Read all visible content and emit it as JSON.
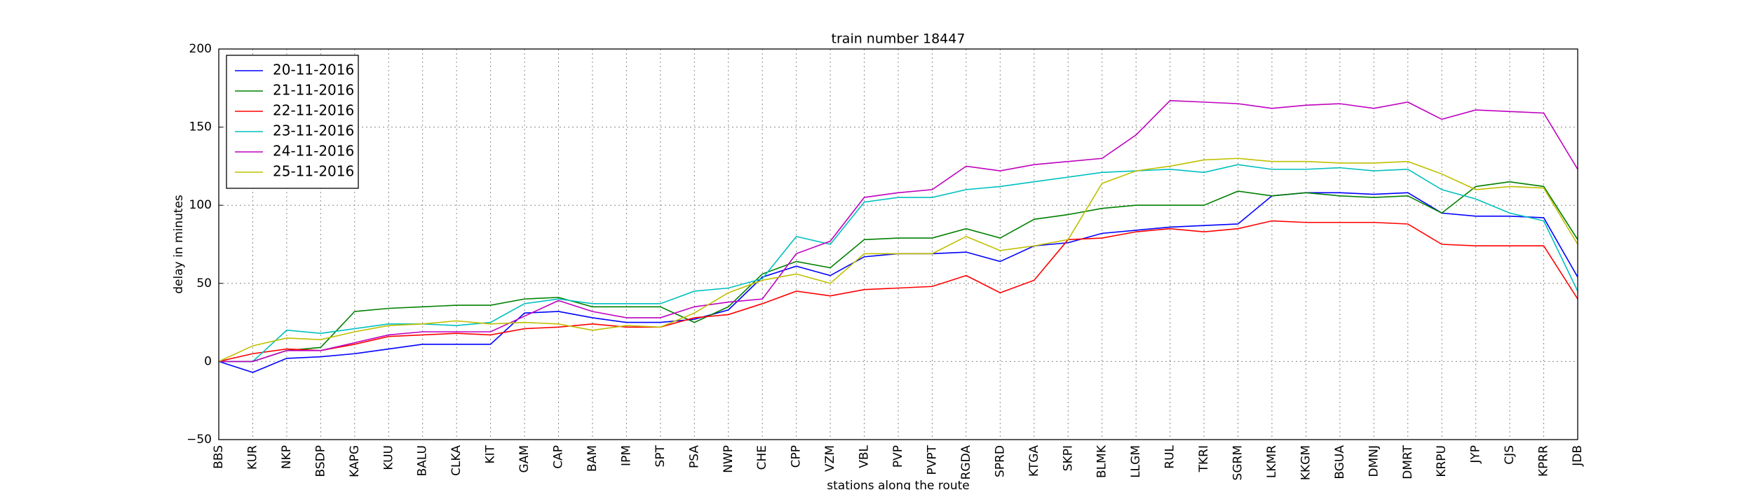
{
  "chart_data": {
    "type": "line",
    "title": "train number 18447",
    "x_label": "stations along the route",
    "y_label": "delay in minutes",
    "categories": [
      "BBS",
      "KUR",
      "NKP",
      "BSDP",
      "KAPG",
      "KUU",
      "BALU",
      "CLKA",
      "KIT",
      "GAM",
      "CAP",
      "BAM",
      "IPM",
      "SPT",
      "PSA",
      "NWP",
      "CHE",
      "CPP",
      "VZM",
      "VBL",
      "PVP",
      "PVPT",
      "RGDA",
      "SPRD",
      "KTGA",
      "SKPI",
      "BLMK",
      "LLGM",
      "RUL",
      "TKRI",
      "SGRM",
      "LKMR",
      "KKGM",
      "BGUA",
      "DMNJ",
      "DMRT",
      "KRPU",
      "JYP",
      "CJS",
      "KPRR",
      "JDB"
    ],
    "series": [
      {
        "name": "20-11-2016",
        "color": "#0000ff",
        "values": [
          0,
          -7,
          2,
          3,
          5,
          8,
          11,
          11,
          11,
          31,
          32,
          28,
          25,
          25,
          27,
          33,
          54,
          61,
          55,
          67,
          69,
          69,
          70,
          64,
          74,
          76,
          82,
          84,
          86,
          87,
          88,
          106,
          108,
          108,
          107,
          108,
          95,
          93,
          93,
          92,
          54
        ]
      },
      {
        "name": "21-11-2016",
        "color": "#008000",
        "values": [
          0,
          0,
          7,
          9,
          32,
          34,
          35,
          36,
          36,
          40,
          41,
          35,
          35,
          35,
          25,
          35,
          56,
          64,
          60,
          78,
          79,
          79,
          85,
          79,
          91,
          94,
          98,
          100,
          100,
          100,
          109,
          106,
          108,
          106,
          105,
          106,
          95,
          112,
          115,
          112,
          78
        ]
      },
      {
        "name": "22-11-2016",
        "color": "#ff0000",
        "values": [
          0,
          5,
          8,
          7,
          11,
          16,
          17,
          18,
          17,
          21,
          22,
          24,
          22,
          22,
          28,
          30,
          37,
          45,
          42,
          46,
          47,
          48,
          55,
          44,
          52,
          78,
          79,
          83,
          85,
          83,
          85,
          90,
          89,
          89,
          89,
          88,
          75,
          74,
          74,
          74,
          40
        ]
      },
      {
        "name": "23-11-2016",
        "color": "#00bfbf",
        "values": [
          0,
          0,
          20,
          18,
          21,
          24,
          24,
          23,
          25,
          37,
          40,
          37,
          37,
          37,
          45,
          47,
          53,
          80,
          75,
          102,
          105,
          105,
          110,
          112,
          115,
          118,
          121,
          122,
          123,
          121,
          126,
          123,
          123,
          124,
          122,
          123,
          110,
          104,
          95,
          90,
          45
        ]
      },
      {
        "name": "24-11-2016",
        "color": "#bf00bf",
        "values": [
          0,
          0,
          7,
          7,
          12,
          17,
          19,
          19,
          19,
          29,
          39,
          32,
          28,
          28,
          35,
          38,
          40,
          69,
          77,
          105,
          108,
          110,
          125,
          122,
          126,
          128,
          130,
          145,
          167,
          166,
          165,
          162,
          164,
          165,
          162,
          166,
          155,
          161,
          160,
          159,
          123
        ]
      },
      {
        "name": "25-11-2016",
        "color": "#bfbf00",
        "values": [
          0,
          10,
          15,
          14,
          19,
          23,
          24,
          26,
          24,
          25,
          24,
          20,
          23,
          22,
          31,
          44,
          52,
          56,
          50,
          69,
          69,
          69,
          80,
          71,
          74,
          78,
          114,
          122,
          125,
          129,
          130,
          128,
          128,
          127,
          127,
          128,
          120,
          110,
          112,
          111,
          75
        ]
      }
    ],
    "ylim": [
      -50,
      200
    ],
    "yticks": [
      {
        "value": -50,
        "label": "−50"
      },
      0,
      50,
      100,
      150,
      200
    ],
    "grid": true,
    "legend": "upper left"
  }
}
